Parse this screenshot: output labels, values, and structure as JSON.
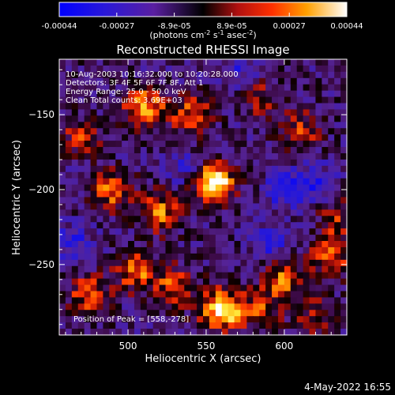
{
  "chart_data": {
    "type": "heatmap",
    "title": "Reconstructed RHESSI Image",
    "xlabel": "Heliocentric X (arcsec)",
    "ylabel": "Heliocentric Y (arcsec)",
    "xlim": [
      456,
      640
    ],
    "ylim": [
      -297,
      -113
    ],
    "x_ticks": [
      500,
      550,
      600
    ],
    "y_ticks": [
      -150,
      -200,
      -250
    ],
    "colorbar": {
      "ticks": [
        "-0.00044",
        "-0.00027",
        "-8.9e-05",
        "8.9e-05",
        "0.00027",
        "0.00044"
      ],
      "min": -0.00044,
      "max": 0.00044,
      "units_line1": "(photons cm",
      "units_exp1": "-2",
      "units_mid": " s",
      "units_exp2": "-1",
      "units_line2": " asec",
      "units_exp3": "-2",
      "units_close": ")"
    },
    "annotations": {
      "time": "10-Aug-2003 10:16:32.000 to 10:20:28.000",
      "detectors": "Detectors: 3F 4F 5F 6F 7F 8F, Att 1",
      "energy": "Energy Range: 25.0 - 50.0 keV",
      "clean": "Clean     Total counts: 3.69E+03",
      "peak": "Position of Peak = [558,-278]"
    },
    "hotspots": [
      {
        "x": 555,
        "y": -195,
        "amp": 1.0
      },
      {
        "x": 560,
        "y": -280,
        "amp": 1.0
      },
      {
        "x": 510,
        "y": -145,
        "amp": 0.75
      },
      {
        "x": 540,
        "y": -150,
        "amp": 0.55
      },
      {
        "x": 490,
        "y": -200,
        "amp": 0.65
      },
      {
        "x": 520,
        "y": -215,
        "amp": 0.6
      },
      {
        "x": 475,
        "y": -270,
        "amp": 0.55
      },
      {
        "x": 505,
        "y": -255,
        "amp": 0.6
      },
      {
        "x": 530,
        "y": -265,
        "amp": 0.55
      },
      {
        "x": 600,
        "y": -260,
        "amp": 0.55
      },
      {
        "x": 610,
        "y": -160,
        "amp": 0.45
      },
      {
        "x": 630,
        "y": -245,
        "amp": 0.6
      },
      {
        "x": 620,
        "y": -285,
        "amp": 0.4
      },
      {
        "x": 585,
        "y": -140,
        "amp": 0.35
      },
      {
        "x": 585,
        "y": -280,
        "amp": 0.5
      },
      {
        "x": 470,
        "y": -165,
        "amp": 0.4
      },
      {
        "x": 635,
        "y": -220,
        "amp": 0.4
      }
    ],
    "coldspots": [
      {
        "x": 600,
        "y": -200,
        "amp": 0.5
      },
      {
        "x": 620,
        "y": -195,
        "amp": 0.45
      },
      {
        "x": 465,
        "y": -235,
        "amp": 0.4
      },
      {
        "x": 590,
        "y": -235,
        "amp": 0.4
      },
      {
        "x": 535,
        "y": -185,
        "amp": 0.3
      },
      {
        "x": 570,
        "y": -120,
        "amp": 0.3
      }
    ]
  },
  "footer": {
    "date": "4-May-2022 16:55"
  }
}
